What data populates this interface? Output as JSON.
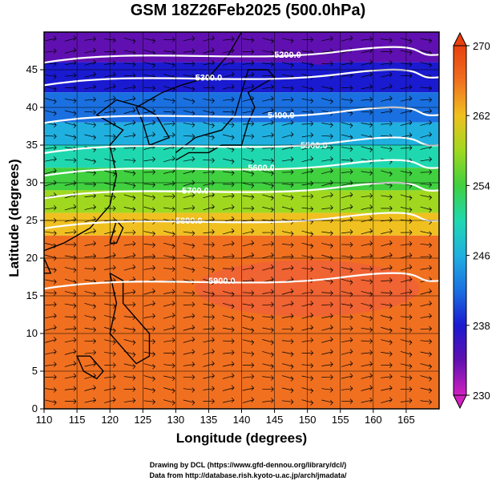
{
  "title": "GSM 18Z26Feb2025 (500.0hPa)",
  "xaxis": {
    "label": "Longitude (degrees)",
    "min": 110,
    "max": 170,
    "ticks": [
      "110",
      "115",
      "120",
      "125",
      "130",
      "135",
      "140",
      "145",
      "150",
      "155",
      "160",
      "165"
    ]
  },
  "yaxis": {
    "label": "Latitude  (degrees)",
    "min": 0,
    "max": 50,
    "ticks": [
      "0",
      "5",
      "10",
      "15",
      "20",
      "25",
      "30",
      "35",
      "40",
      "45"
    ]
  },
  "colorbar": {
    "min": 230,
    "max": 270,
    "labels": [
      "270",
      "262",
      "254",
      "246",
      "238",
      "230"
    ],
    "colors": [
      "#d020c0",
      "#6010b0",
      "#1a1ad0",
      "#1a70e0",
      "#20b0e0",
      "#20d8b0",
      "#40d040",
      "#a0d820",
      "#f0c020",
      "#f07020",
      "#e84010"
    ]
  },
  "contours": [
    {
      "label": "5200.0",
      "lon": 147,
      "lat": 47
    },
    {
      "label": "5300.0",
      "lon": 135,
      "lat": 44
    },
    {
      "label": "5400.0",
      "lon": 146,
      "lat": 39
    },
    {
      "label": "5500.0",
      "lon": 151,
      "lat": 35
    },
    {
      "label": "5600.0",
      "lon": 143,
      "lat": 32
    },
    {
      "label": "5700.0",
      "lon": 133,
      "lat": 29
    },
    {
      "label": "5800.0",
      "lon": 132,
      "lat": 25
    },
    {
      "label": "5900.0",
      "lon": 137,
      "lat": 17
    }
  ],
  "credits": {
    "line1": "Drawing by DCL (https://www.gfd-dennou.org/library/dcl/)",
    "line2": "Data from http://database.rish.kyoto-u.ac.jp/arch/jmadata/"
  }
}
